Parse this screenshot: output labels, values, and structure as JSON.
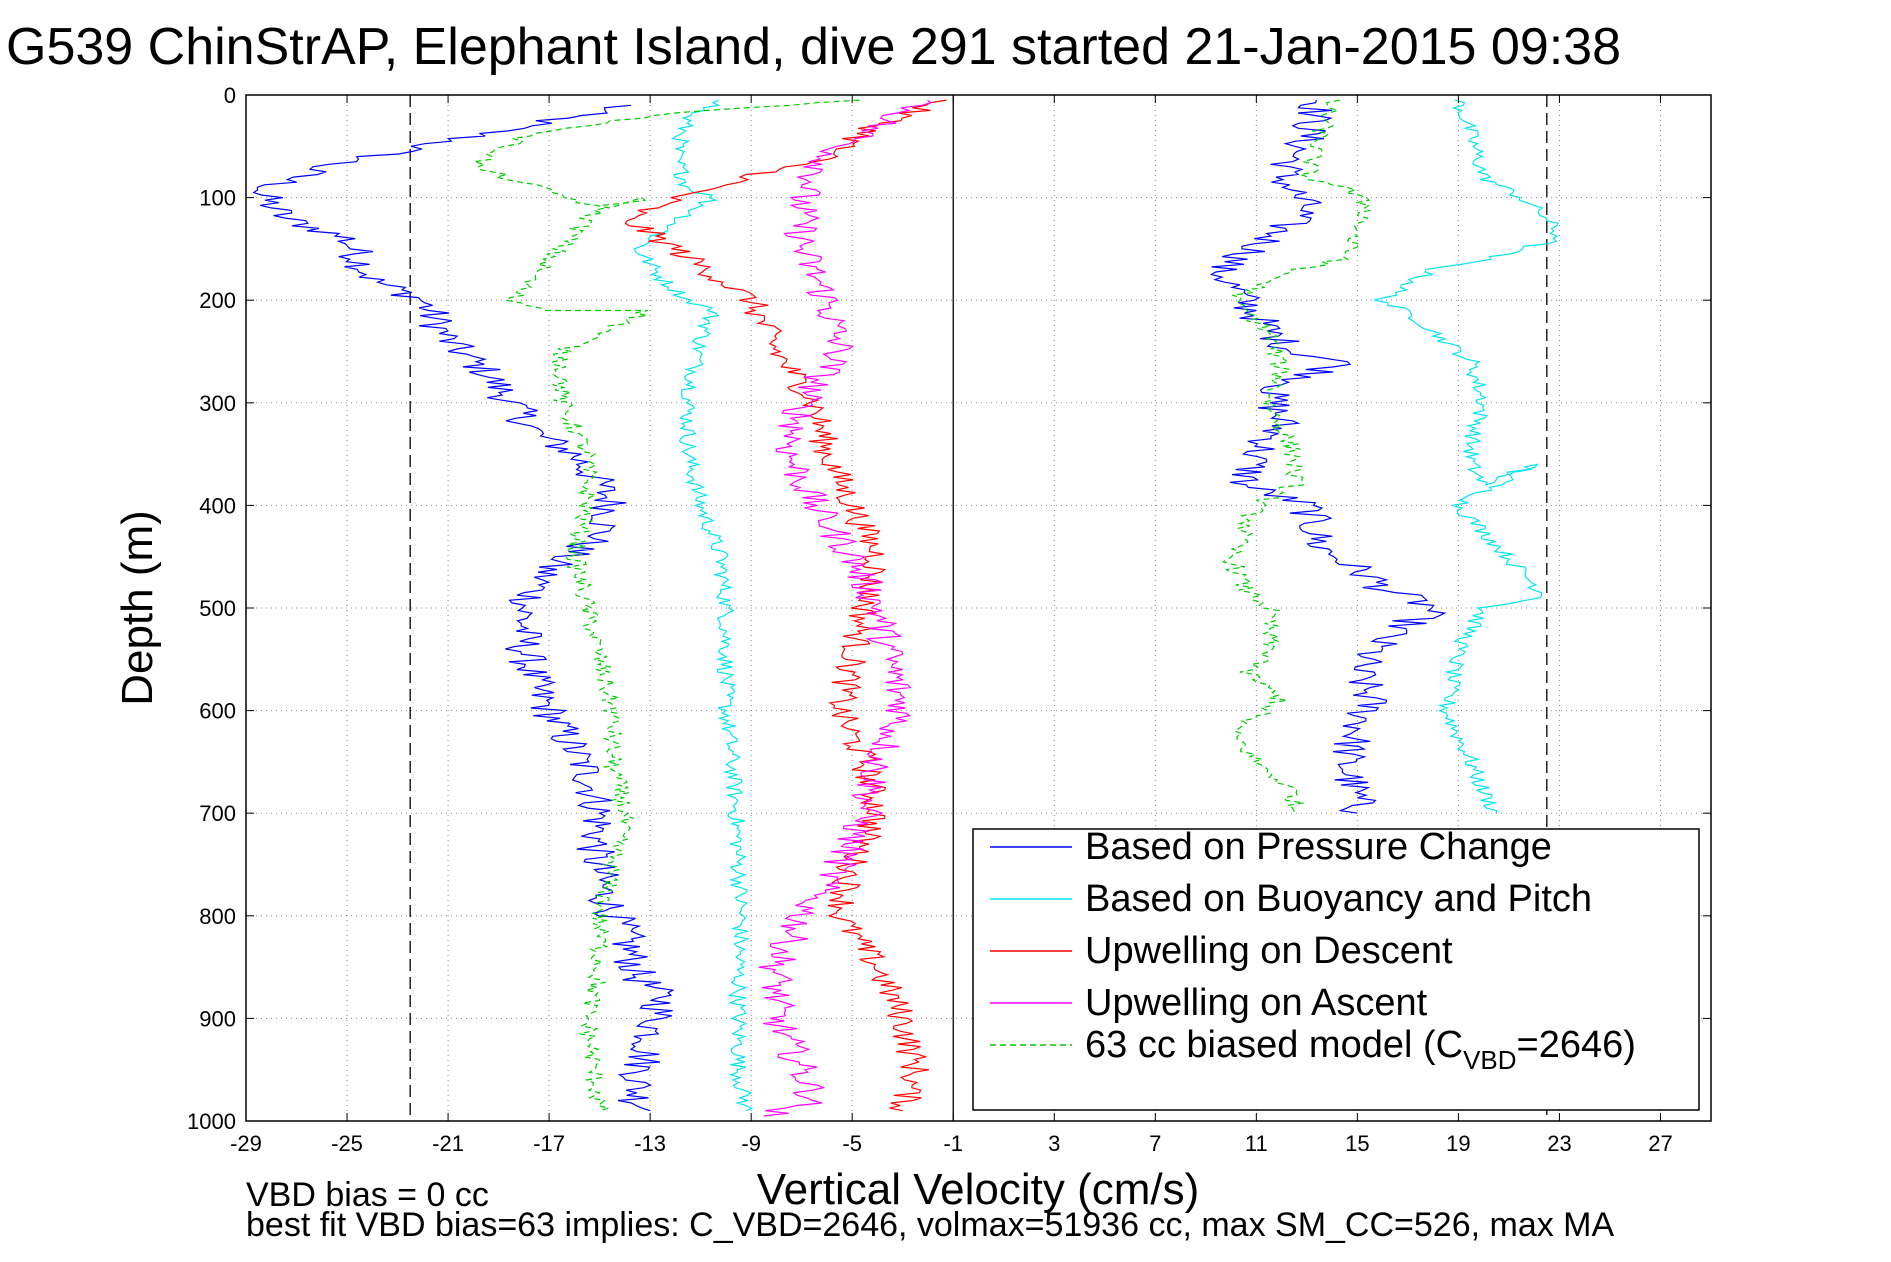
{
  "chart_data": {
    "type": "line",
    "title": "G539 ChinStrAP, Elephant Island, dive 291 started 21-Jan-2015 09:38",
    "xlabel": "Vertical Velocity (cm/s)",
    "ylabel": "Depth (m)",
    "xlim": [
      -29,
      29
    ],
    "ylim": [
      1000,
      0
    ],
    "y_reversed": true,
    "grid": "dotted",
    "legend_placement": "bottom-right",
    "xticks": [
      -29,
      -25,
      -21,
      -17,
      -13,
      -9,
      -5,
      -1,
      3,
      7,
      11,
      15,
      19,
      23,
      27
    ],
    "yticks": [
      0,
      100,
      200,
      300,
      400,
      500,
      600,
      700,
      800,
      900,
      1000
    ],
    "reference_lines_x": [
      -1,
      -22.5,
      22.5
    ],
    "legend_entries": [
      {
        "main": "Based on Pressure Change",
        "sub": "",
        "post": ""
      },
      {
        "main": "Based on Buoyancy and Pitch",
        "sub": "",
        "post": ""
      },
      {
        "main": "Upwelling on Descent",
        "sub": "",
        "post": ""
      },
      {
        "main": "Upwelling on Ascent",
        "sub": "",
        "post": ""
      },
      {
        "main": "63 cc biased model (C",
        "sub": "VBD",
        "post": "=2646)"
      }
    ],
    "series": [
      {
        "name": "Based on Pressure Change",
        "color": "#0000ff",
        "style": "solid",
        "noise": 0.8,
        "x": [
          -14,
          -22,
          -26,
          -28.5,
          -27.5,
          -25,
          -24.5,
          -24,
          -22,
          -21,
          -19.5,
          -18.5,
          -17.5,
          -16,
          -15,
          -14.5,
          -15,
          -17,
          -18,
          -18,
          -17.5,
          -16.5,
          -15.5,
          -15,
          -15.2,
          -14.8,
          -14,
          -13.5,
          -12.5,
          -13,
          -13.5,
          -13.5,
          -13
        ],
        "y": [
          10,
          50,
          70,
          95,
          120,
          140,
          160,
          180,
          200,
          240,
          270,
          300,
          330,
          350,
          380,
          400,
          430,
          460,
          500,
          540,
          580,
          620,
          660,
          700,
          740,
          780,
          820,
          860,
          880,
          920,
          960,
          980,
          990
        ]
      },
      {
        "name": "Based on Pressure Change (ascent)",
        "color": "#0000ff",
        "style": "solid",
        "noise": 0.8,
        "x": [
          13.5,
          13,
          12,
          13,
          11,
          9.5,
          10.5,
          11.5,
          12.5,
          14.5,
          11.5,
          12,
          11,
          10.5,
          13,
          13.5,
          15.5,
          16,
          17,
          18,
          16,
          15,
          15.5,
          15,
          14.5,
          15,
          15
        ],
        "y": [
          5,
          40,
          80,
          110,
          150,
          170,
          200,
          230,
          250,
          260,
          290,
          320,
          350,
          380,
          400,
          440,
          470,
          480,
          490,
          500,
          530,
          560,
          590,
          620,
          650,
          690,
          700
        ]
      },
      {
        "name": "Based on Buoyancy and Pitch",
        "color": "#00e5ee",
        "style": "solid",
        "noise": 0.35,
        "x": [
          -10,
          -11.5,
          -12,
          -11.5,
          -10.5,
          -13.5,
          -12.5,
          -11.5,
          -10.5,
          -11,
          -11.5,
          -11.5,
          -11,
          -10.2,
          -10,
          -10,
          -10,
          -9.8,
          -9.6,
          -9.5,
          -9.4,
          -9.5,
          -9.5,
          -9.5,
          -9.2
        ],
        "y": [
          5,
          20,
          60,
          90,
          100,
          150,
          180,
          200,
          210,
          240,
          300,
          350,
          400,
          450,
          500,
          550,
          600,
          640,
          700,
          750,
          800,
          850,
          900,
          950,
          990
        ]
      },
      {
        "name": "Based on Buoyancy and Pitch (ascent)",
        "color": "#00e5ee",
        "style": "solid",
        "noise": 0.35,
        "x": [
          19,
          19.5,
          20,
          21.5,
          22.5,
          23,
          20,
          18,
          16,
          17.5,
          19.5,
          20,
          19.5,
          19.5,
          20,
          22,
          19,
          22.5,
          20,
          19,
          18.5,
          19.5,
          20,
          20.5
        ],
        "y": [
          5,
          40,
          80,
          100,
          120,
          140,
          160,
          170,
          200,
          220,
          260,
          300,
          340,
          360,
          380,
          360,
          400,
          490,
          500,
          540,
          600,
          650,
          680,
          700
        ]
      },
      {
        "name": "Upwelling on Descent",
        "color": "#ff0000",
        "style": "solid",
        "noise": 0.6,
        "x": [
          -1.5,
          -4,
          -6,
          -9,
          -12,
          -14,
          -12,
          -9,
          -8,
          -6.5,
          -6,
          -5,
          -4,
          -4.5,
          -5,
          -5.5,
          -4.5,
          -4,
          -5,
          -5.5,
          -4,
          -3,
          -2.5,
          -3
        ],
        "y": [
          5,
          30,
          60,
          80,
          100,
          120,
          150,
          200,
          250,
          300,
          350,
          400,
          450,
          500,
          550,
          600,
          650,
          700,
          750,
          800,
          850,
          900,
          950,
          990
        ]
      },
      {
        "name": "Upwelling on Ascent",
        "color": "#ff00ff",
        "style": "solid",
        "noise": 0.7,
        "x": [
          -2,
          -4,
          -6,
          -7,
          -7,
          -6,
          -5.5,
          -7,
          -7.5,
          -6.5,
          -5,
          -4,
          -3.5,
          -3,
          -4,
          -4.5,
          -5.5,
          -7,
          -8,
          -8,
          -7,
          -6.5,
          -8.5
        ],
        "y": [
          5,
          30,
          60,
          100,
          150,
          200,
          250,
          300,
          350,
          400,
          450,
          500,
          550,
          600,
          650,
          700,
          750,
          800,
          850,
          900,
          950,
          980,
          995
        ]
      },
      {
        "name": "63 cc biased model (CVBD=2646)",
        "color": "#00cc00",
        "style": "dashed",
        "noise": 0.4,
        "x": [
          -5,
          -13,
          -18,
          -20,
          -15,
          -13,
          -15,
          -17,
          -18.5,
          -17,
          -13,
          -16.5,
          -16.5,
          -15.5,
          -15.5,
          -16,
          -15.5,
          -15,
          -14.5,
          -14.5,
          -14,
          -15,
          -15,
          -15.5,
          -15
        ],
        "y": [
          5,
          20,
          40,
          70,
          110,
          100,
          110,
          160,
          200,
          210,
          210,
          250,
          300,
          350,
          400,
          450,
          500,
          550,
          600,
          650,
          700,
          800,
          850,
          900,
          990
        ]
      },
      {
        "name": "63 cc biased model (ascent)",
        "color": "#00cc00",
        "style": "dashed",
        "noise": 0.4,
        "x": [
          14,
          13.5,
          13,
          14.5,
          15.5,
          15,
          14.5,
          12.5,
          10,
          11.5,
          12,
          11.5,
          12.5,
          12.5,
          11,
          10,
          10.5,
          11.5,
          11.5,
          10.5,
          12,
          10,
          11,
          12.5,
          12.5
        ],
        "y": [
          5,
          40,
          80,
          90,
          110,
          130,
          160,
          170,
          200,
          230,
          270,
          300,
          350,
          380,
          400,
          450,
          480,
          500,
          550,
          560,
          590,
          620,
          650,
          680,
          700
        ]
      }
    ]
  },
  "footer": {
    "line1": "VBD bias = 0 cc",
    "line2": "best fit VBD bias=63 implies: C_VBD=2646, volmax=51936 cc, max SM_CC=526, max MA"
  }
}
